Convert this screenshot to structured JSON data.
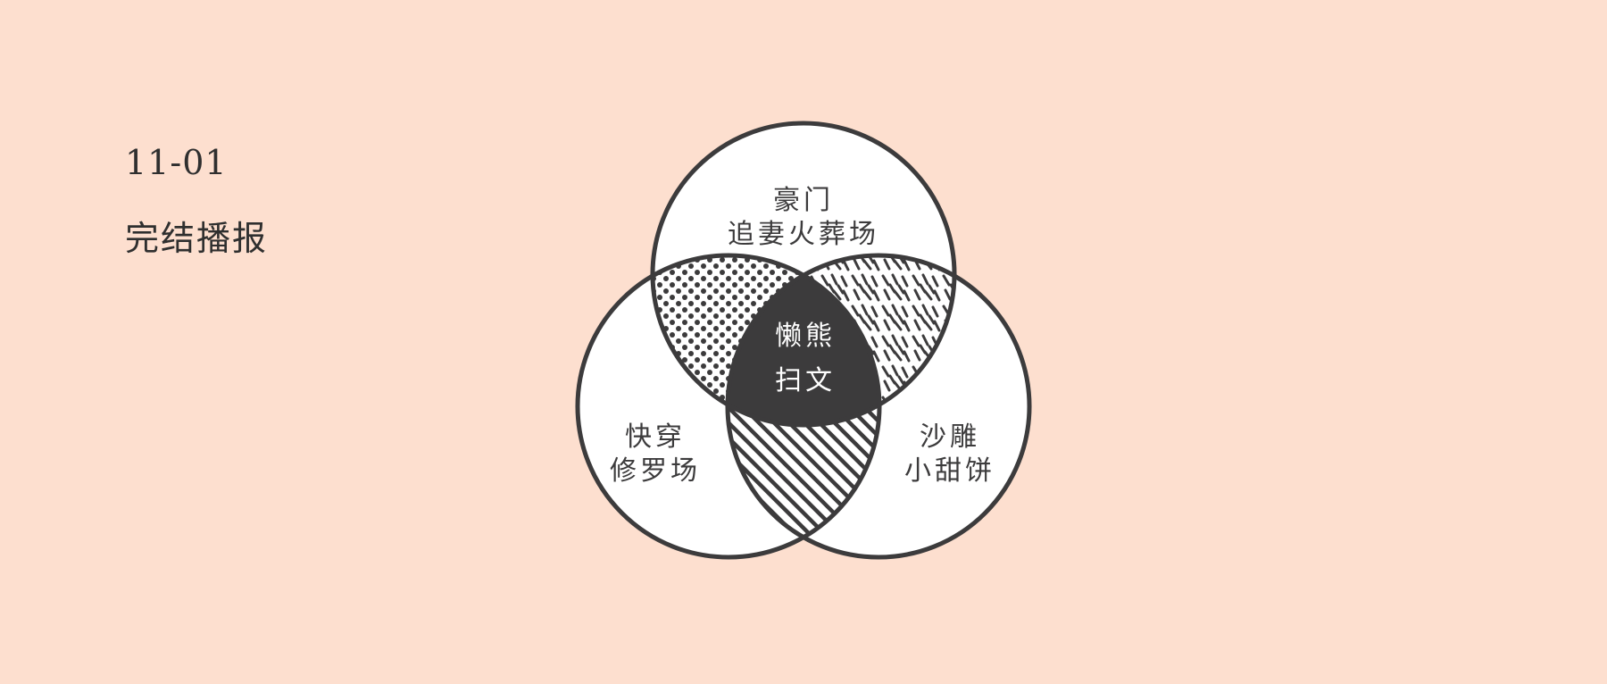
{
  "header": {
    "date": "11-01",
    "title": "完结播报"
  },
  "colors": {
    "background": "#FDDFCF",
    "stroke": "#3C3B3C",
    "fill": "#FFFFFF",
    "center": "#3C3B3C",
    "center_text": "#FFFFFF"
  },
  "venn": {
    "top": {
      "line1": "豪门",
      "line2": "追妻火葬场"
    },
    "left": {
      "line1": "快穿",
      "line2": "修罗场"
    },
    "right": {
      "line1": "沙雕",
      "line2": "小甜饼"
    },
    "center": {
      "line1": "懒熊",
      "line2": "扫文"
    },
    "patterns": {
      "top_left_overlap": "dots",
      "top_right_overlap": "dashes",
      "bottom_overlap": "diagonal-stripes"
    }
  }
}
